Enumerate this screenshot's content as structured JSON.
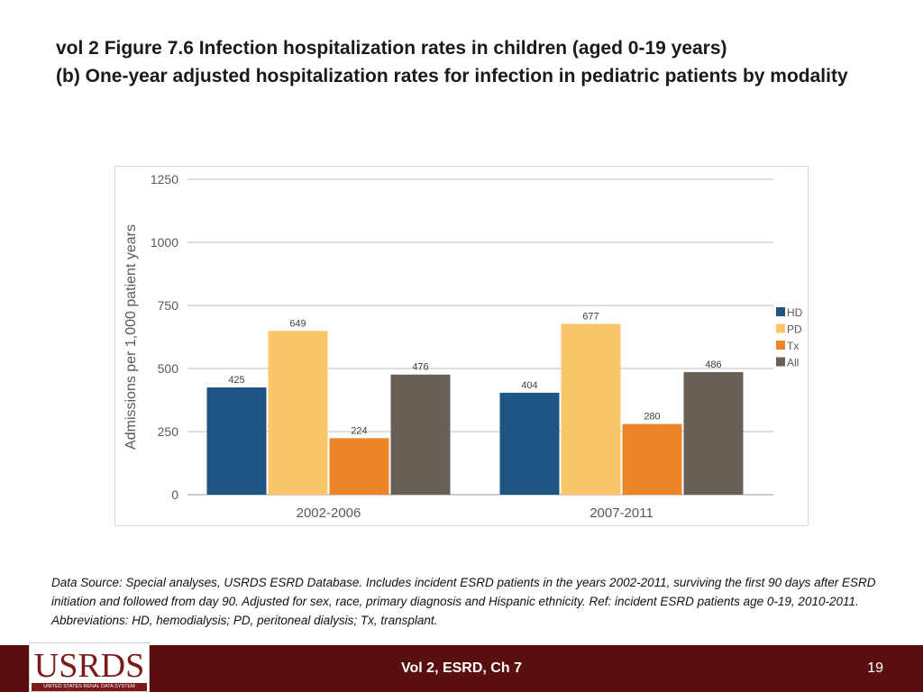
{
  "slide": {
    "title_line1": "vol 2 Figure 7.6 Infection hospitalization rates in children (aged 0-19 years)",
    "title_line2": "(b) One-year adjusted hospitalization rates for infection in pediatric patients by modality",
    "source_note": "Data Source: Special analyses, USRDS ESRD Database. Includes incident ESRD patients in the years 2002-2011, surviving the first 90 days after ESRD initiation and followed from day 90. Adjusted for sex, race, primary diagnosis and Hispanic ethnicity. Ref: incident ESRD patients age 0-19, 2010-2011. Abbreviations: HD, hemodialysis; PD, peritoneal dialysis; Tx, transplant."
  },
  "footer": {
    "logo_text": "USRDS",
    "logo_subtext": "UNITED STATES RENAL DATA SYSTEM",
    "center_text": "Vol 2, ESRD, Ch 7",
    "page_number": "19",
    "background_color": "#5a0f0f"
  },
  "chart_data": {
    "type": "bar",
    "title": "",
    "xlabel": "",
    "ylabel": "Admissions per 1,000 patient years",
    "categories": [
      "2002-2006",
      "2007-2011"
    ],
    "series": [
      {
        "name": "HD",
        "color": "#1f5582",
        "values": [
          425,
          404
        ]
      },
      {
        "name": "PD",
        "color": "#fbc669",
        "values": [
          649,
          677
        ]
      },
      {
        "name": "Tx",
        "color": "#ed8526",
        "values": [
          224,
          280
        ]
      },
      {
        "name": "All",
        "color": "#685f57",
        "values": [
          476,
          486
        ]
      }
    ],
    "ylim": [
      0,
      1250
    ],
    "yticks": [
      0,
      250,
      500,
      750,
      1000,
      1250
    ],
    "grid": true,
    "legend_position": "right"
  }
}
